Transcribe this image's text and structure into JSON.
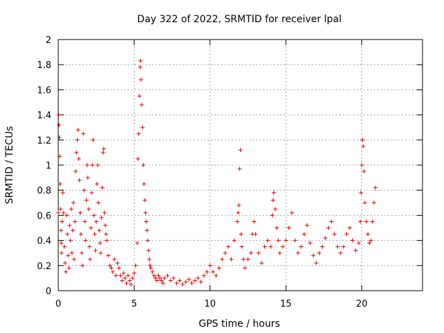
{
  "chart_data": {
    "type": "scatter",
    "title": "Day 322 of 2022, SRMTID for receiver lpal",
    "xlabel": "GPS time / hours",
    "ylabel": "SRMTID / TECUs",
    "xlim": [
      0,
      24
    ],
    "ylim": [
      0,
      2
    ],
    "xticks": [
      0,
      5,
      10,
      15,
      20
    ],
    "xtick_labels": [
      "0",
      "5",
      "10",
      "15",
      "20"
    ],
    "yticks": [
      0,
      0.2,
      0.4,
      0.6,
      0.8,
      1,
      1.2,
      1.4,
      1.6,
      1.8,
      2
    ],
    "ytick_labels": [
      "0",
      "0.2",
      "0.4",
      "0.6",
      "0.8",
      "1",
      "1.2",
      "1.4",
      "1.6",
      "1.8",
      "2"
    ],
    "grid": true,
    "marker": "+",
    "marker_color": "#e00000",
    "series": [
      {
        "name": "SRMTID",
        "points": [
          [
            0.0,
            0.62
          ],
          [
            0.03,
            1.4
          ],
          [
            0.05,
            1.32
          ],
          [
            0.07,
            1.22
          ],
          [
            0.1,
            1.07
          ],
          [
            0.12,
            0.85
          ],
          [
            0.15,
            0.65
          ],
          [
            0.18,
            0.48
          ],
          [
            0.2,
            0.38
          ],
          [
            0.22,
            0.3
          ],
          [
            0.25,
            0.55
          ],
          [
            0.3,
            0.78
          ],
          [
            0.35,
            0.62
          ],
          [
            0.4,
            0.35
          ],
          [
            0.45,
            0.22
          ],
          [
            0.5,
            0.15
          ],
          [
            0.55,
            0.6
          ],
          [
            0.6,
            0.45
          ],
          [
            0.65,
            0.28
          ],
          [
            0.7,
            0.18
          ],
          [
            0.75,
            0.52
          ],
          [
            0.8,
            0.4
          ],
          [
            0.85,
            0.65
          ],
          [
            0.9,
            0.3
          ],
          [
            0.95,
            0.48
          ],
          [
            1.0,
            0.7
          ],
          [
            1.05,
            0.25
          ],
          [
            1.1,
            0.55
          ],
          [
            1.15,
            0.95
          ],
          [
            1.2,
            1.1
          ],
          [
            1.25,
            1.2
          ],
          [
            1.3,
            1.28
          ],
          [
            1.35,
            1.05
          ],
          [
            1.4,
            0.88
          ],
          [
            1.45,
            0.62
          ],
          [
            1.5,
            0.45
          ],
          [
            1.55,
            0.3
          ],
          [
            1.6,
            0.2
          ],
          [
            1.65,
            1.25
          ],
          [
            1.7,
            0.8
          ],
          [
            1.75,
            0.55
          ],
          [
            1.8,
            0.4
          ],
          [
            1.85,
            0.72
          ],
          [
            1.9,
            1.0
          ],
          [
            1.95,
            0.9
          ],
          [
            2.0,
            0.65
          ],
          [
            2.05,
            0.35
          ],
          [
            2.1,
            0.25
          ],
          [
            2.15,
            0.5
          ],
          [
            2.2,
            0.78
          ],
          [
            2.25,
            1.0
          ],
          [
            2.3,
            1.2
          ],
          [
            2.35,
            0.6
          ],
          [
            2.4,
            0.45
          ],
          [
            2.45,
            0.32
          ],
          [
            2.5,
            0.55
          ],
          [
            2.55,
            0.85
          ],
          [
            2.6,
            1.0
          ],
          [
            2.65,
            0.7
          ],
          [
            2.7,
            0.48
          ],
          [
            2.75,
            0.38
          ],
          [
            2.8,
            0.3
          ],
          [
            2.85,
            0.58
          ],
          [
            2.9,
            0.82
          ],
          [
            2.95,
            1.1
          ],
          [
            3.0,
            1.13
          ],
          [
            3.05,
            0.62
          ],
          [
            3.1,
            0.52
          ],
          [
            3.15,
            0.45
          ],
          [
            3.2,
            0.4
          ],
          [
            3.3,
            0.28
          ],
          [
            3.4,
            0.2
          ],
          [
            3.5,
            0.18
          ],
          [
            3.6,
            0.15
          ],
          [
            3.7,
            0.25
          ],
          [
            3.8,
            0.12
          ],
          [
            3.9,
            0.22
          ],
          [
            4.0,
            0.18
          ],
          [
            4.1,
            0.12
          ],
          [
            4.2,
            0.08
          ],
          [
            4.3,
            0.14
          ],
          [
            4.4,
            0.1
          ],
          [
            4.5,
            0.06
          ],
          [
            4.6,
            0.12
          ],
          [
            4.7,
            0.08
          ],
          [
            4.8,
            0.05
          ],
          [
            4.9,
            0.1
          ],
          [
            5.0,
            0.14
          ],
          [
            5.1,
            0.2
          ],
          [
            5.2,
            0.38
          ],
          [
            5.25,
            1.05
          ],
          [
            5.3,
            1.25
          ],
          [
            5.35,
            1.55
          ],
          [
            5.4,
            1.78
          ],
          [
            5.42,
            1.83
          ],
          [
            5.45,
            1.68
          ],
          [
            5.5,
            1.48
          ],
          [
            5.55,
            1.3
          ],
          [
            5.6,
            1.0
          ],
          [
            5.65,
            0.85
          ],
          [
            5.7,
            0.72
          ],
          [
            5.75,
            0.62
          ],
          [
            5.8,
            0.55
          ],
          [
            5.85,
            0.48
          ],
          [
            5.9,
            0.4
          ],
          [
            5.95,
            0.32
          ],
          [
            6.0,
            0.25
          ],
          [
            6.05,
            0.2
          ],
          [
            6.1,
            0.18
          ],
          [
            6.2,
            0.15
          ],
          [
            6.3,
            0.12
          ],
          [
            6.4,
            0.1
          ],
          [
            6.5,
            0.08
          ],
          [
            6.6,
            0.12
          ],
          [
            6.7,
            0.1
          ],
          [
            6.8,
            0.08
          ],
          [
            6.9,
            0.06
          ],
          [
            7.0,
            0.1
          ],
          [
            7.2,
            0.12
          ],
          [
            7.4,
            0.08
          ],
          [
            7.6,
            0.1
          ],
          [
            7.8,
            0.06
          ],
          [
            8.0,
            0.08
          ],
          [
            8.2,
            0.05
          ],
          [
            8.4,
            0.07
          ],
          [
            8.6,
            0.09
          ],
          [
            8.8,
            0.06
          ],
          [
            9.0,
            0.08
          ],
          [
            9.2,
            0.1
          ],
          [
            9.4,
            0.07
          ],
          [
            9.6,
            0.12
          ],
          [
            9.8,
            0.15
          ],
          [
            10.0,
            0.2
          ],
          [
            10.2,
            0.15
          ],
          [
            10.4,
            0.12
          ],
          [
            10.6,
            0.18
          ],
          [
            10.8,
            0.25
          ],
          [
            11.0,
            0.3
          ],
          [
            11.2,
            0.35
          ],
          [
            11.4,
            0.25
          ],
          [
            11.6,
            0.4
          ],
          [
            11.8,
            0.55
          ],
          [
            11.85,
            0.62
          ],
          [
            11.9,
            0.68
          ],
          [
            11.95,
            0.97
          ],
          [
            12.0,
            1.12
          ],
          [
            12.05,
            0.45
          ],
          [
            12.1,
            0.35
          ],
          [
            12.2,
            0.25
          ],
          [
            12.3,
            0.18
          ],
          [
            12.5,
            0.25
          ],
          [
            12.7,
            0.3
          ],
          [
            12.8,
            0.45
          ],
          [
            12.9,
            0.55
          ],
          [
            13.0,
            0.45
          ],
          [
            13.2,
            0.3
          ],
          [
            13.4,
            0.22
          ],
          [
            13.6,
            0.35
          ],
          [
            13.8,
            0.4
          ],
          [
            14.0,
            0.35
          ],
          [
            14.1,
            0.6
          ],
          [
            14.15,
            0.72
          ],
          [
            14.2,
            0.78
          ],
          [
            14.3,
            0.65
          ],
          [
            14.4,
            0.5
          ],
          [
            14.5,
            0.4
          ],
          [
            14.6,
            0.3
          ],
          [
            14.8,
            0.35
          ],
          [
            15.0,
            0.4
          ],
          [
            15.2,
            0.5
          ],
          [
            15.4,
            0.62
          ],
          [
            15.6,
            0.4
          ],
          [
            15.8,
            0.3
          ],
          [
            16.0,
            0.35
          ],
          [
            16.2,
            0.45
          ],
          [
            16.4,
            0.52
          ],
          [
            16.6,
            0.38
          ],
          [
            16.8,
            0.28
          ],
          [
            17.0,
            0.22
          ],
          [
            17.2,
            0.3
          ],
          [
            17.4,
            0.35
          ],
          [
            17.6,
            0.42
          ],
          [
            17.8,
            0.5
          ],
          [
            18.0,
            0.55
          ],
          [
            18.2,
            0.45
          ],
          [
            18.4,
            0.35
          ],
          [
            18.6,
            0.3
          ],
          [
            18.8,
            0.35
          ],
          [
            19.0,
            0.45
          ],
          [
            19.2,
            0.5
          ],
          [
            19.4,
            0.4
          ],
          [
            19.6,
            0.32
          ],
          [
            19.8,
            0.38
          ],
          [
            19.9,
            0.55
          ],
          [
            19.95,
            0.78
          ],
          [
            20.0,
            1.0
          ],
          [
            20.05,
            1.2
          ],
          [
            20.1,
            1.15
          ],
          [
            20.15,
            0.95
          ],
          [
            20.2,
            0.7
          ],
          [
            20.3,
            0.55
          ],
          [
            20.4,
            0.45
          ],
          [
            20.5,
            0.38
          ],
          [
            20.6,
            0.4
          ],
          [
            20.7,
            0.55
          ],
          [
            20.8,
            0.7
          ],
          [
            20.9,
            0.82
          ]
        ]
      }
    ]
  }
}
